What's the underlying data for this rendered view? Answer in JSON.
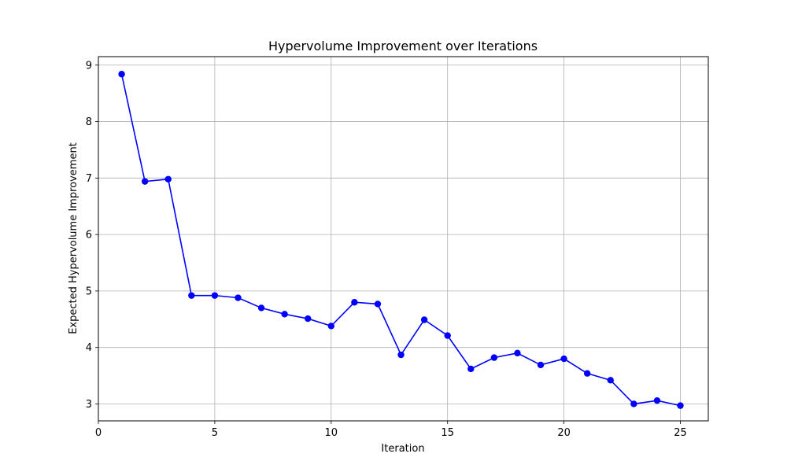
{
  "chart_data": {
    "type": "line",
    "title": "Hypervolume Improvement over Iterations",
    "xlabel": "Iteration",
    "ylabel": "Expected Hypervolume Improvement",
    "xlim": [
      0,
      26.2
    ],
    "ylim": [
      2.7,
      9.15
    ],
    "xticks": [
      0,
      5,
      10,
      15,
      20,
      25
    ],
    "yticks": [
      3,
      4,
      5,
      6,
      7,
      8,
      9
    ],
    "grid": true,
    "series": [
      {
        "color": "#0000ff",
        "marker": "circle",
        "x": [
          1,
          2,
          3,
          4,
          5,
          6,
          7,
          8,
          9,
          10,
          11,
          12,
          13,
          14,
          15,
          16,
          17,
          18,
          19,
          20,
          21,
          22,
          23,
          24,
          25
        ],
        "y": [
          8.84,
          6.94,
          6.98,
          4.92,
          4.92,
          4.88,
          4.7,
          4.59,
          4.51,
          4.38,
          4.8,
          4.77,
          3.87,
          4.49,
          4.21,
          3.62,
          3.82,
          3.9,
          3.69,
          3.8,
          3.54,
          3.42,
          3.0,
          3.06,
          2.97
        ]
      }
    ]
  }
}
